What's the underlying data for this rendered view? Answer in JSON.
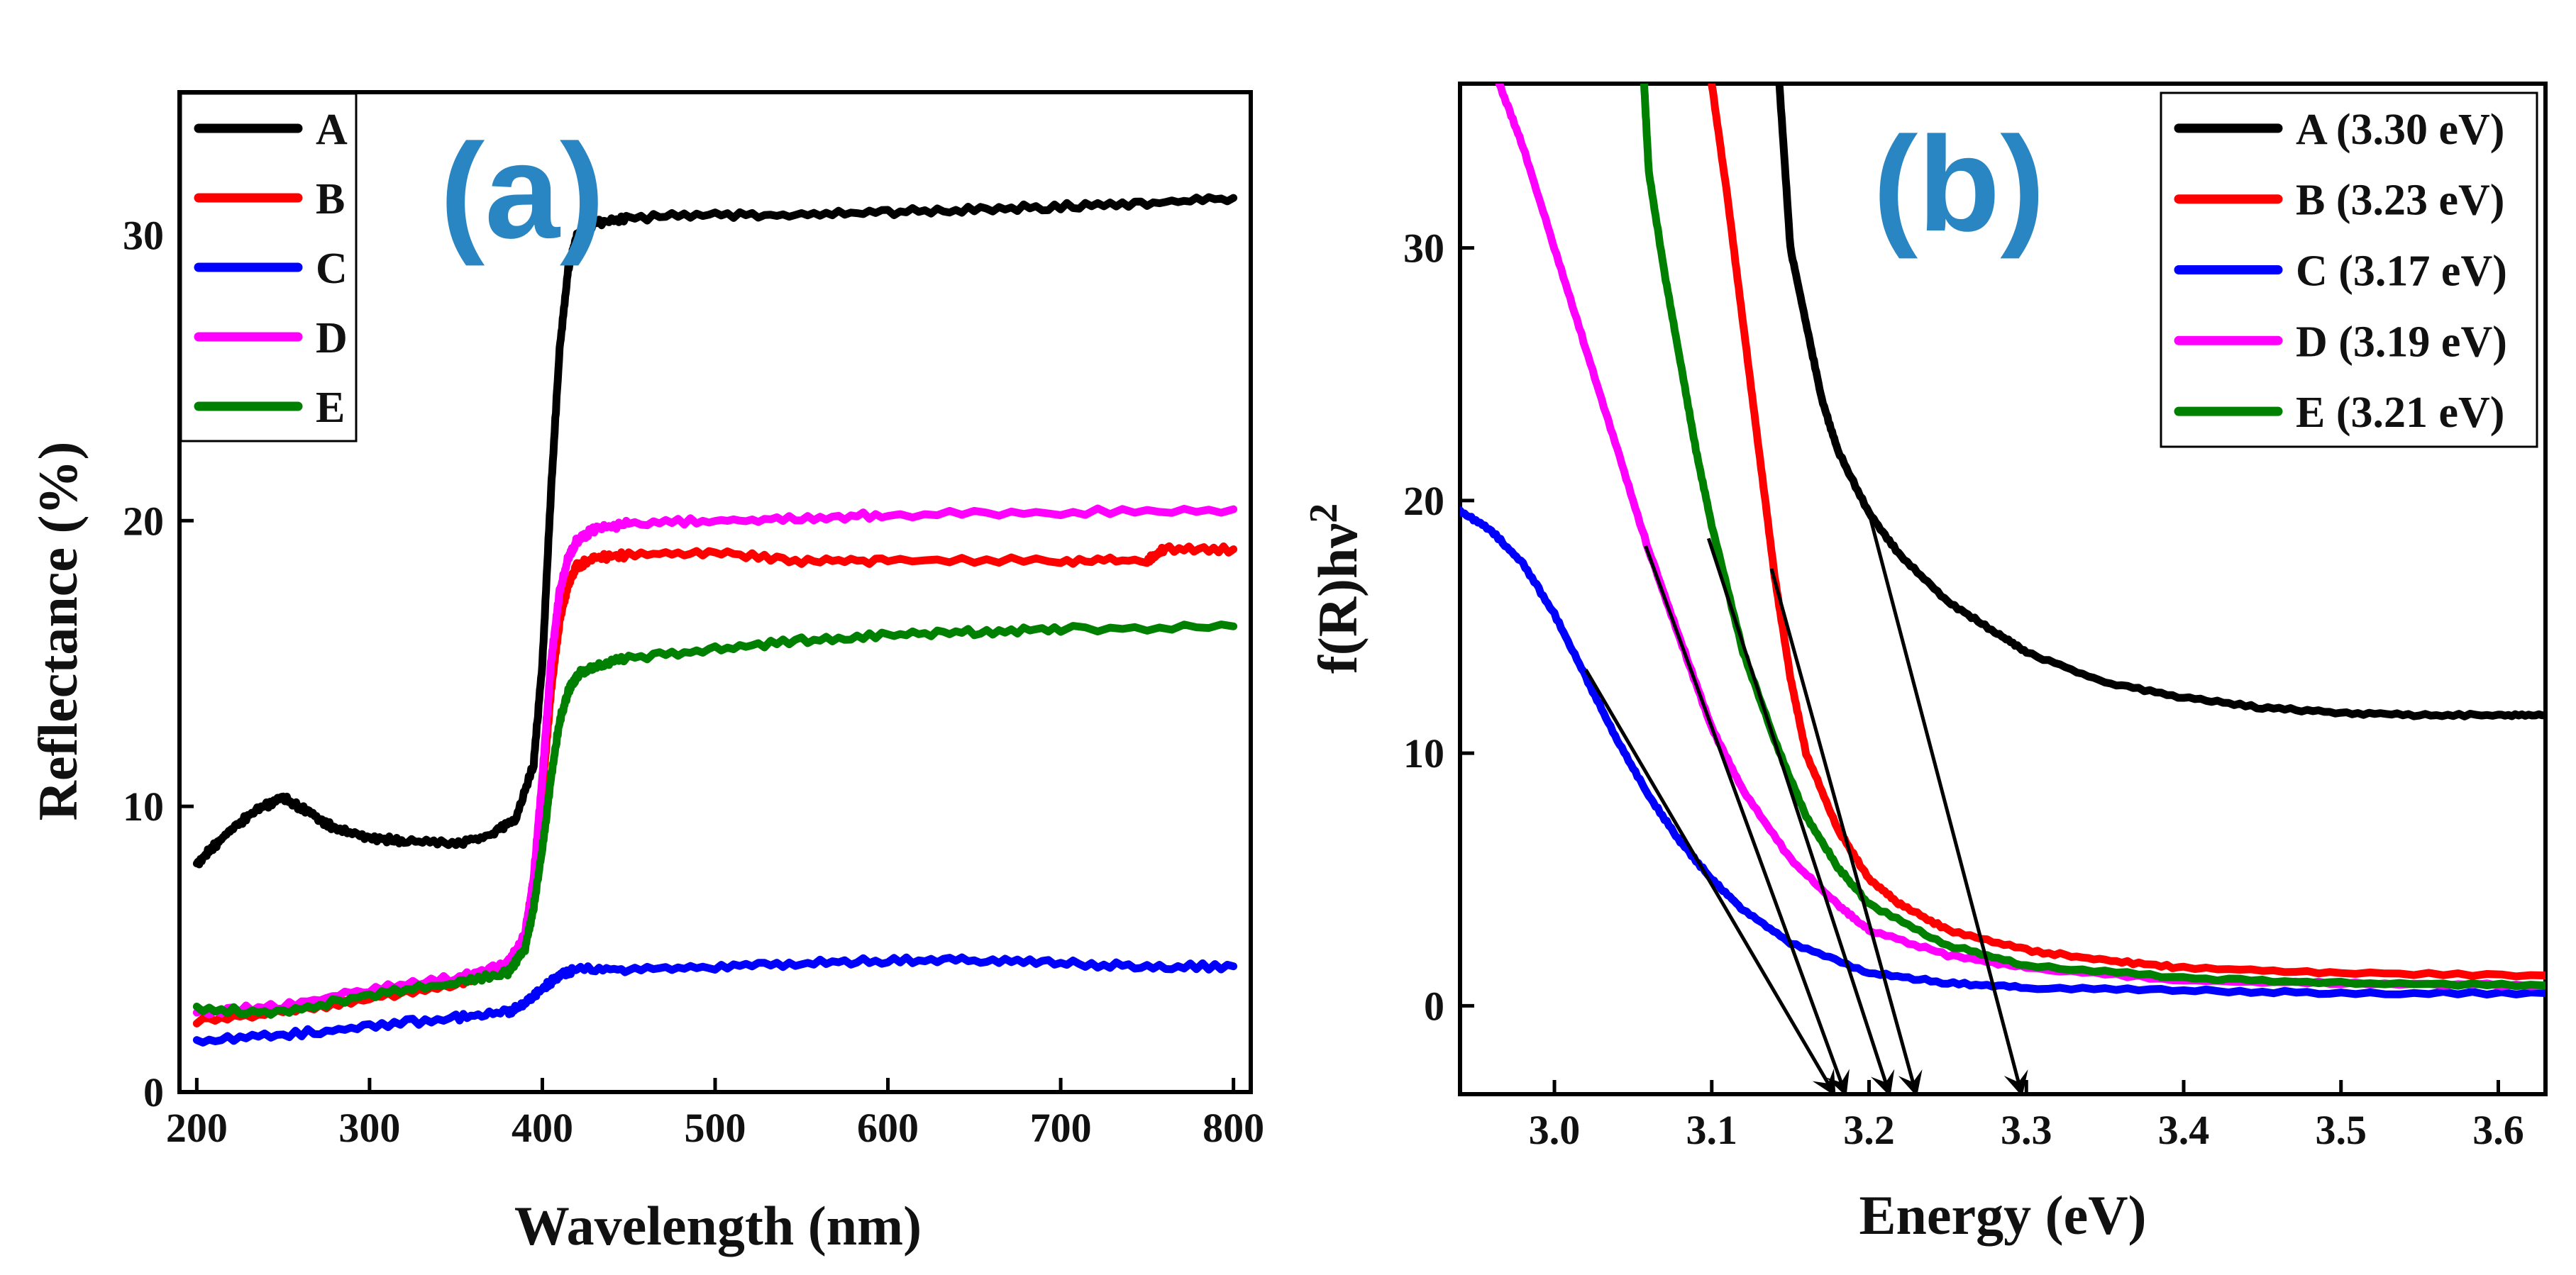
{
  "chart_data": [
    {
      "type": "line",
      "panel_label": "(a)",
      "xlabel": "Wavelength (nm)",
      "ylabel": "Reflectance (%)",
      "xlim": [
        190,
        810
      ],
      "ylim": [
        0,
        35
      ],
      "xticks": [
        "200",
        "300",
        "400",
        "500",
        "600",
        "700",
        "800"
      ],
      "yticks": [
        "0",
        "10",
        "20",
        "30"
      ],
      "legend_position": "top-left",
      "series": [
        {
          "name": "A",
          "color": "#000000",
          "x": [
            200,
            210,
            220,
            235,
            250,
            265,
            280,
            300,
            320,
            350,
            370,
            385,
            395,
            400,
            405,
            410,
            415,
            420,
            430,
            450,
            500,
            550,
            600,
            650,
            700,
            750,
            800
          ],
          "y": [
            8.0,
            8.6,
            9.2,
            9.9,
            10.3,
            9.8,
            9.2,
            8.9,
            8.8,
            8.7,
            9.0,
            9.6,
            11.5,
            15.0,
            21.0,
            26.0,
            28.8,
            30.0,
            30.4,
            30.6,
            30.7,
            30.7,
            30.8,
            30.9,
            31.0,
            31.1,
            31.3
          ]
        },
        {
          "name": "B",
          "color": "#ff0000",
          "x": [
            200,
            250,
            300,
            350,
            380,
            390,
            395,
            400,
            405,
            410,
            415,
            420,
            430,
            450,
            500,
            550,
            600,
            700,
            750,
            760,
            800
          ],
          "y": [
            2.5,
            2.8,
            3.3,
            3.8,
            4.3,
            5.5,
            7.5,
            10.5,
            14.0,
            16.5,
            17.8,
            18.4,
            18.7,
            18.8,
            18.9,
            18.6,
            18.6,
            18.6,
            18.6,
            19.0,
            19.0
          ]
        },
        {
          "name": "C",
          "color": "#0000ff",
          "x": [
            200,
            250,
            300,
            350,
            380,
            390,
            400,
            410,
            420,
            450,
            500,
            550,
            600,
            650,
            700,
            750,
            800
          ],
          "y": [
            1.8,
            2.0,
            2.3,
            2.6,
            2.8,
            3.1,
            3.6,
            4.1,
            4.3,
            4.3,
            4.4,
            4.5,
            4.6,
            4.6,
            4.5,
            4.4,
            4.4
          ]
        },
        {
          "name": "D",
          "color": "#ff00ff",
          "x": [
            200,
            250,
            300,
            350,
            380,
            390,
            395,
            400,
            405,
            410,
            415,
            420,
            430,
            450,
            500,
            550,
            600,
            700,
            800
          ],
          "y": [
            2.8,
            3.0,
            3.6,
            4.0,
            4.5,
            5.5,
            7.5,
            11.0,
            15.0,
            17.5,
            18.7,
            19.3,
            19.7,
            19.9,
            20.0,
            20.1,
            20.2,
            20.3,
            20.4
          ]
        },
        {
          "name": "E",
          "color": "#008000",
          "x": [
            200,
            250,
            300,
            350,
            380,
            390,
            395,
            400,
            405,
            410,
            415,
            420,
            430,
            450,
            500,
            550,
            600,
            650,
            700,
            800
          ],
          "y": [
            2.9,
            2.8,
            3.4,
            3.8,
            4.2,
            5.0,
            6.5,
            8.5,
            11.0,
            13.0,
            14.0,
            14.6,
            14.9,
            15.2,
            15.5,
            15.8,
            16.0,
            16.1,
            16.2,
            16.3
          ]
        }
      ]
    },
    {
      "type": "line",
      "panel_label": "(b)",
      "xlabel": "Energy (eV)",
      "ylabel_main": "f(R)hν",
      "ylabel_superscript": "2",
      "xlim": [
        2.94,
        3.63
      ],
      "ylim": [
        -3.5,
        36.5
      ],
      "xticks": [
        "3.0",
        "3.1",
        "3.2",
        "3.3",
        "3.4",
        "3.5",
        "3.6"
      ],
      "yticks": [
        "0",
        "10",
        "20",
        "30"
      ],
      "legend_position": "top-right",
      "series": [
        {
          "name": "A (3.30 eV)",
          "color": "#000000",
          "x": [
            3.143,
            3.15,
            3.16,
            3.17,
            3.18,
            3.2,
            3.22,
            3.25,
            3.28,
            3.3,
            3.35,
            3.4,
            3.45,
            3.5,
            3.55,
            3.6,
            3.63
          ],
          "y": [
            36.5,
            30.0,
            27.0,
            24.0,
            22.0,
            19.5,
            17.8,
            16.0,
            14.8,
            14.0,
            12.8,
            12.2,
            11.8,
            11.6,
            11.5,
            11.5,
            11.5
          ]
        },
        {
          "name": "B (3.23 eV)",
          "color": "#ff0000",
          "x": [
            3.1,
            3.11,
            3.12,
            3.13,
            3.14,
            3.15,
            3.16,
            3.18,
            3.2,
            3.22,
            3.25,
            3.3,
            3.35,
            3.4,
            3.5,
            3.63
          ],
          "y": [
            36.5,
            32.0,
            27.0,
            22.0,
            17.0,
            13.0,
            10.0,
            7.0,
            5.0,
            4.0,
            3.0,
            2.2,
            1.8,
            1.5,
            1.3,
            1.2
          ]
        },
        {
          "name": "C (3.17 eV)",
          "color": "#0000ff",
          "x": [
            2.94,
            2.96,
            2.98,
            3.0,
            3.02,
            3.04,
            3.06,
            3.08,
            3.1,
            3.12,
            3.15,
            3.2,
            3.25,
            3.3,
            3.4,
            3.5,
            3.63
          ],
          "y": [
            19.6,
            18.8,
            17.5,
            15.5,
            13.0,
            10.5,
            8.3,
            6.5,
            5.0,
            3.8,
            2.5,
            1.3,
            0.9,
            0.7,
            0.6,
            0.5,
            0.5
          ]
        },
        {
          "name": "D (3.19 eV)",
          "color": "#ff00ff",
          "x": [
            2.965,
            2.98,
            3.0,
            3.02,
            3.04,
            3.06,
            3.08,
            3.1,
            3.12,
            3.15,
            3.18,
            3.2,
            3.25,
            3.3,
            3.4,
            3.5,
            3.63
          ],
          "y": [
            36.5,
            34.0,
            30.0,
            26.0,
            22.0,
            18.0,
            14.5,
            11.0,
            8.5,
            5.8,
            4.0,
            3.0,
            2.0,
            1.5,
            1.0,
            0.9,
            0.8
          ]
        },
        {
          "name": "E (3.21 eV)",
          "color": "#008000",
          "x": [
            3.057,
            3.06,
            3.07,
            3.08,
            3.09,
            3.1,
            3.12,
            3.14,
            3.16,
            3.18,
            3.2,
            3.25,
            3.3,
            3.4,
            3.5,
            3.63
          ],
          "y": [
            36.5,
            33.0,
            29.0,
            25.5,
            22.0,
            19.0,
            14.0,
            10.5,
            7.5,
            5.5,
            4.0,
            2.4,
            1.6,
            1.1,
            0.9,
            0.8
          ]
        }
      ],
      "tangent_arrows": [
        {
          "from": [
            3.02,
            13.3
          ],
          "to": [
            3.178,
            -3.5
          ]
        },
        {
          "from": [
            3.058,
            18.2
          ],
          "to": [
            3.185,
            -3.5
          ]
        },
        {
          "from": [
            3.098,
            18.5
          ],
          "to": [
            3.213,
            -3.5
          ]
        },
        {
          "from": [
            3.138,
            17.3
          ],
          "to": [
            3.23,
            -3.5
          ]
        },
        {
          "from": [
            3.2,
            19.5
          ],
          "to": [
            3.297,
            -3.5
          ]
        }
      ]
    }
  ]
}
